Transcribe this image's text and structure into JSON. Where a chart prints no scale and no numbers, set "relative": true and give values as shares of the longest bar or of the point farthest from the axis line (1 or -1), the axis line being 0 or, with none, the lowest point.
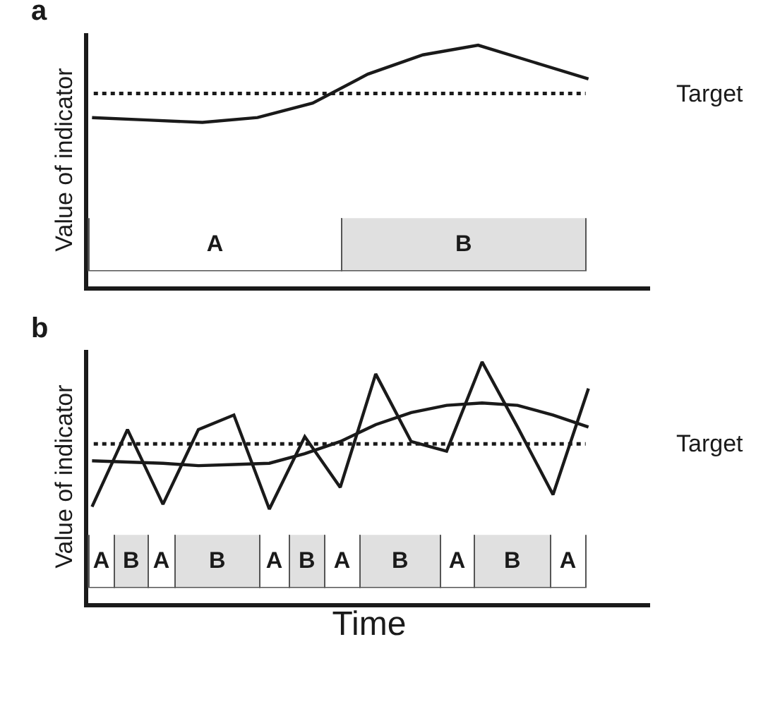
{
  "chart_data": [
    {
      "type": "line",
      "title": "a",
      "ylabel": "Value of indicator",
      "relative": true,
      "tick_labels": false,
      "marker": "none",
      "line_style": "solid",
      "categories": [
        null,
        null,
        null,
        null,
        null,
        null,
        null,
        null,
        null,
        null
      ],
      "series": [
        {
          "color": "#1a1a1a",
          "values": [
            0.7,
            0.69,
            0.68,
            0.7,
            0.76,
            0.88,
            0.96,
            1.0,
            0.93,
            0.86
          ]
        }
      ],
      "ref_lines": [
        {
          "axis": "y",
          "value": 0.8,
          "label": "Target",
          "color": "#1a1a1a",
          "line_style": "dotted"
        }
      ]
    },
    {
      "type": "bar",
      "orientation": "horizontal",
      "stacked": true,
      "relative": true,
      "tick_labels": false,
      "categories": [
        null
      ],
      "series": [
        {
          "name": "A",
          "color": "#ffffff",
          "values": [
            0.508
          ]
        },
        {
          "name": "B",
          "color": "#e0e0e0",
          "values": [
            0.492
          ]
        }
      ]
    },
    {
      "type": "line",
      "title": "b",
      "ylabel": "Value of indicator",
      "xlabel": "Time",
      "relative": true,
      "tick_labels": false,
      "marker": "none",
      "line_style": "solid",
      "categories": [
        null,
        null,
        null,
        null,
        null,
        null,
        null,
        null,
        null,
        null,
        null,
        null,
        null,
        null,
        null
      ],
      "series": [
        {
          "color": "#1a1a1a",
          "values": [
            0.4,
            0.72,
            0.41,
            0.72,
            0.78,
            0.39,
            0.69,
            0.48,
            0.95,
            0.67,
            0.63,
            1.0,
            0.73,
            0.45,
            0.89
          ]
        },
        {
          "color": "#1a1a1a",
          "values": [
            0.59,
            0.585,
            0.58,
            0.57,
            0.575,
            0.58,
            0.62,
            0.67,
            0.74,
            0.79,
            0.82,
            0.83,
            0.82,
            0.78,
            0.73
          ]
        }
      ],
      "ref_lines": [
        {
          "axis": "y",
          "value": 0.66,
          "label": "Target",
          "color": "#1a1a1a",
          "line_style": "dotted"
        }
      ]
    },
    {
      "type": "bar",
      "orientation": "horizontal",
      "stacked": true,
      "relative": true,
      "tick_labels": false,
      "categories": [
        null
      ],
      "series": [
        {
          "name": "A",
          "color": "#ffffff",
          "values": [
            0.051
          ]
        },
        {
          "name": "B",
          "color": "#e0e0e0",
          "values": [
            0.068
          ]
        },
        {
          "name": "A",
          "color": "#ffffff",
          "values": [
            0.056
          ]
        },
        {
          "name": "B",
          "color": "#e0e0e0",
          "values": [
            0.169
          ]
        },
        {
          "name": "A",
          "color": "#ffffff",
          "values": [
            0.059
          ]
        },
        {
          "name": "B",
          "color": "#e0e0e0",
          "values": [
            0.07
          ]
        },
        {
          "name": "A",
          "color": "#ffffff",
          "values": [
            0.073
          ]
        },
        {
          "name": "B",
          "color": "#e0e0e0",
          "values": [
            0.16
          ]
        },
        {
          "name": "A",
          "color": "#ffffff",
          "values": [
            0.07
          ]
        },
        {
          "name": "B",
          "color": "#e0e0e0",
          "values": [
            0.153
          ]
        },
        {
          "name": "A",
          "color": "#ffffff",
          "values": [
            0.071
          ]
        }
      ]
    }
  ]
}
